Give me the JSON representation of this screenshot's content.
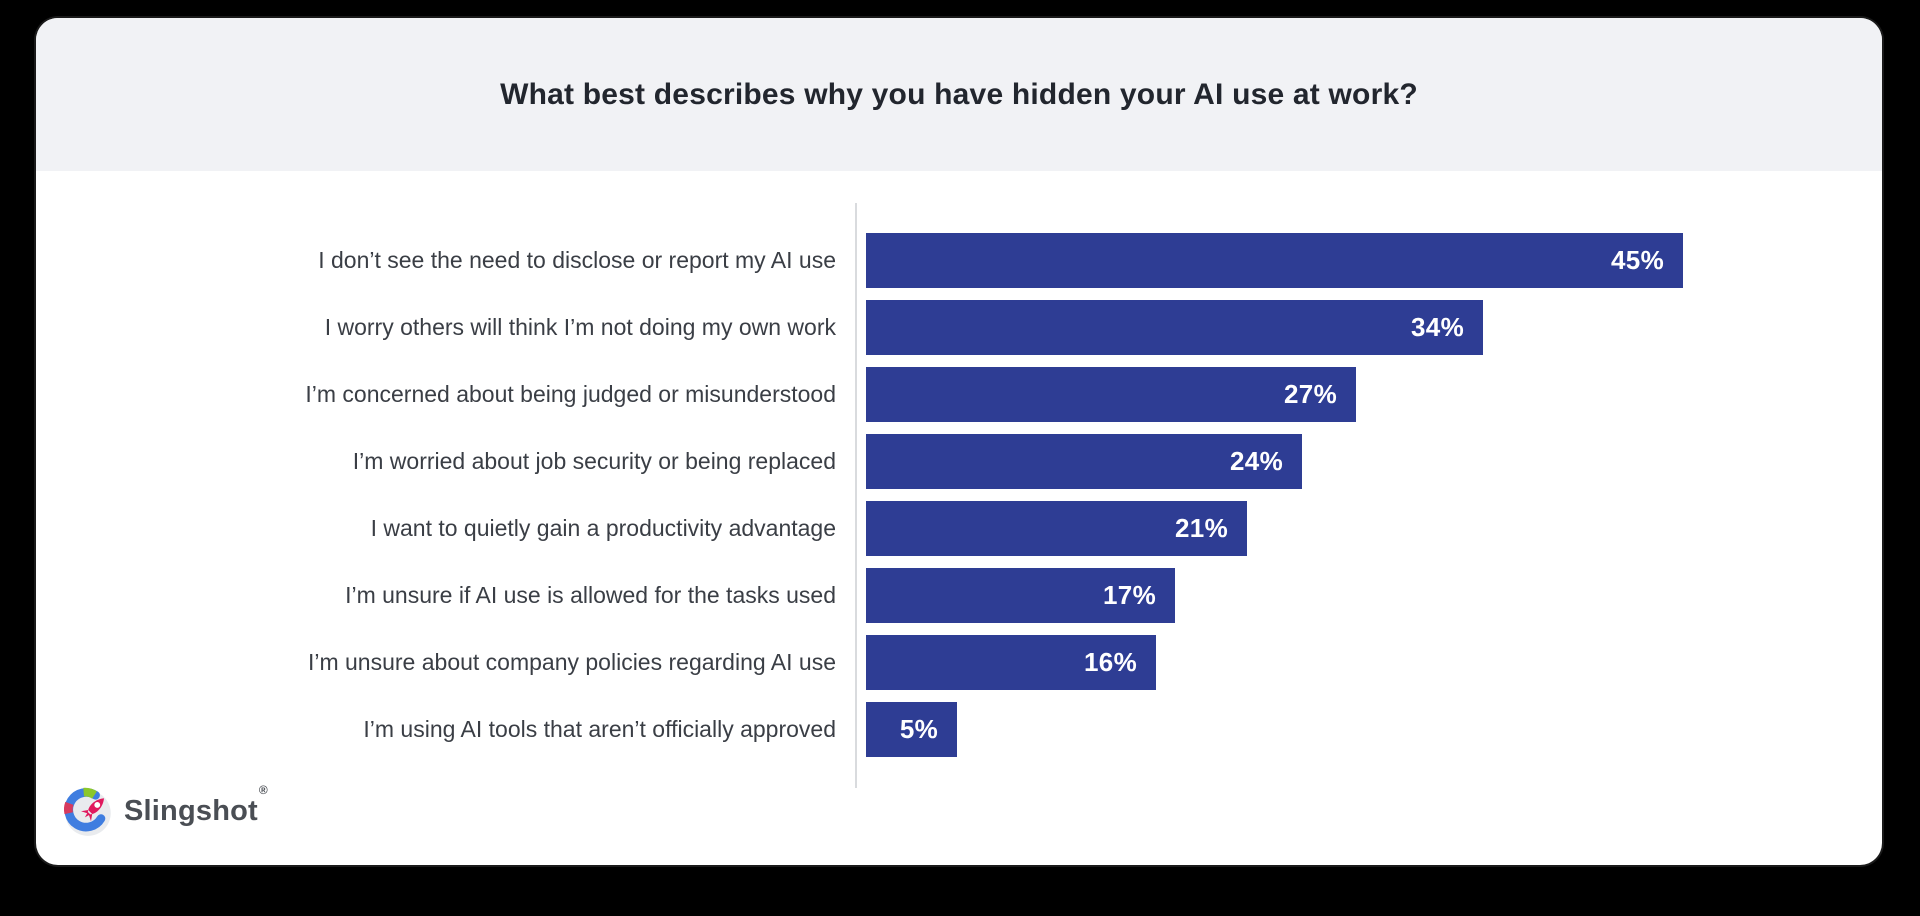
{
  "page": {
    "background_color": "#000000",
    "card_background": "#ffffff",
    "header_background": "#f1f2f5"
  },
  "chart_data": {
    "type": "bar",
    "orientation": "horizontal",
    "title": "What best describes why you have hidden your AI use at work?",
    "categories": [
      "I don’t see the need to disclose or report my AI use",
      "I worry others will think I’m not doing my own work",
      "I’m concerned about being judged or misunderstood",
      "I’m worried about job security or being replaced",
      "I want to quietly gain a productivity advantage",
      "I’m unsure if AI use is allowed for the tasks used",
      "I’m unsure about company policies regarding AI use",
      "I’m using AI tools that aren’t officially approved"
    ],
    "values": [
      45,
      34,
      27,
      24,
      21,
      17,
      16,
      5
    ],
    "value_labels": [
      "45%",
      "34%",
      "27%",
      "24%",
      "21%",
      "17%",
      "16%",
      "5%"
    ],
    "xlim": [
      0,
      45
    ],
    "grid": false,
    "legend": false,
    "bar_color": "#2e3d94",
    "value_label_color": "#ffffff",
    "axis_line_color": "#d9dbde",
    "category_label_color": "#3a3e45",
    "title_color": "#22262e"
  },
  "branding": {
    "name": "Slingshot",
    "registered_mark": "®",
    "icon": "slingshot-rocket-logo",
    "icon_colors": {
      "circle": "#e9ebee",
      "ring_blue": "#3f7de0",
      "ring_green": "#8bc72a",
      "ring_red": "#d63a5e",
      "rocket_pink": "#e0195e"
    }
  }
}
